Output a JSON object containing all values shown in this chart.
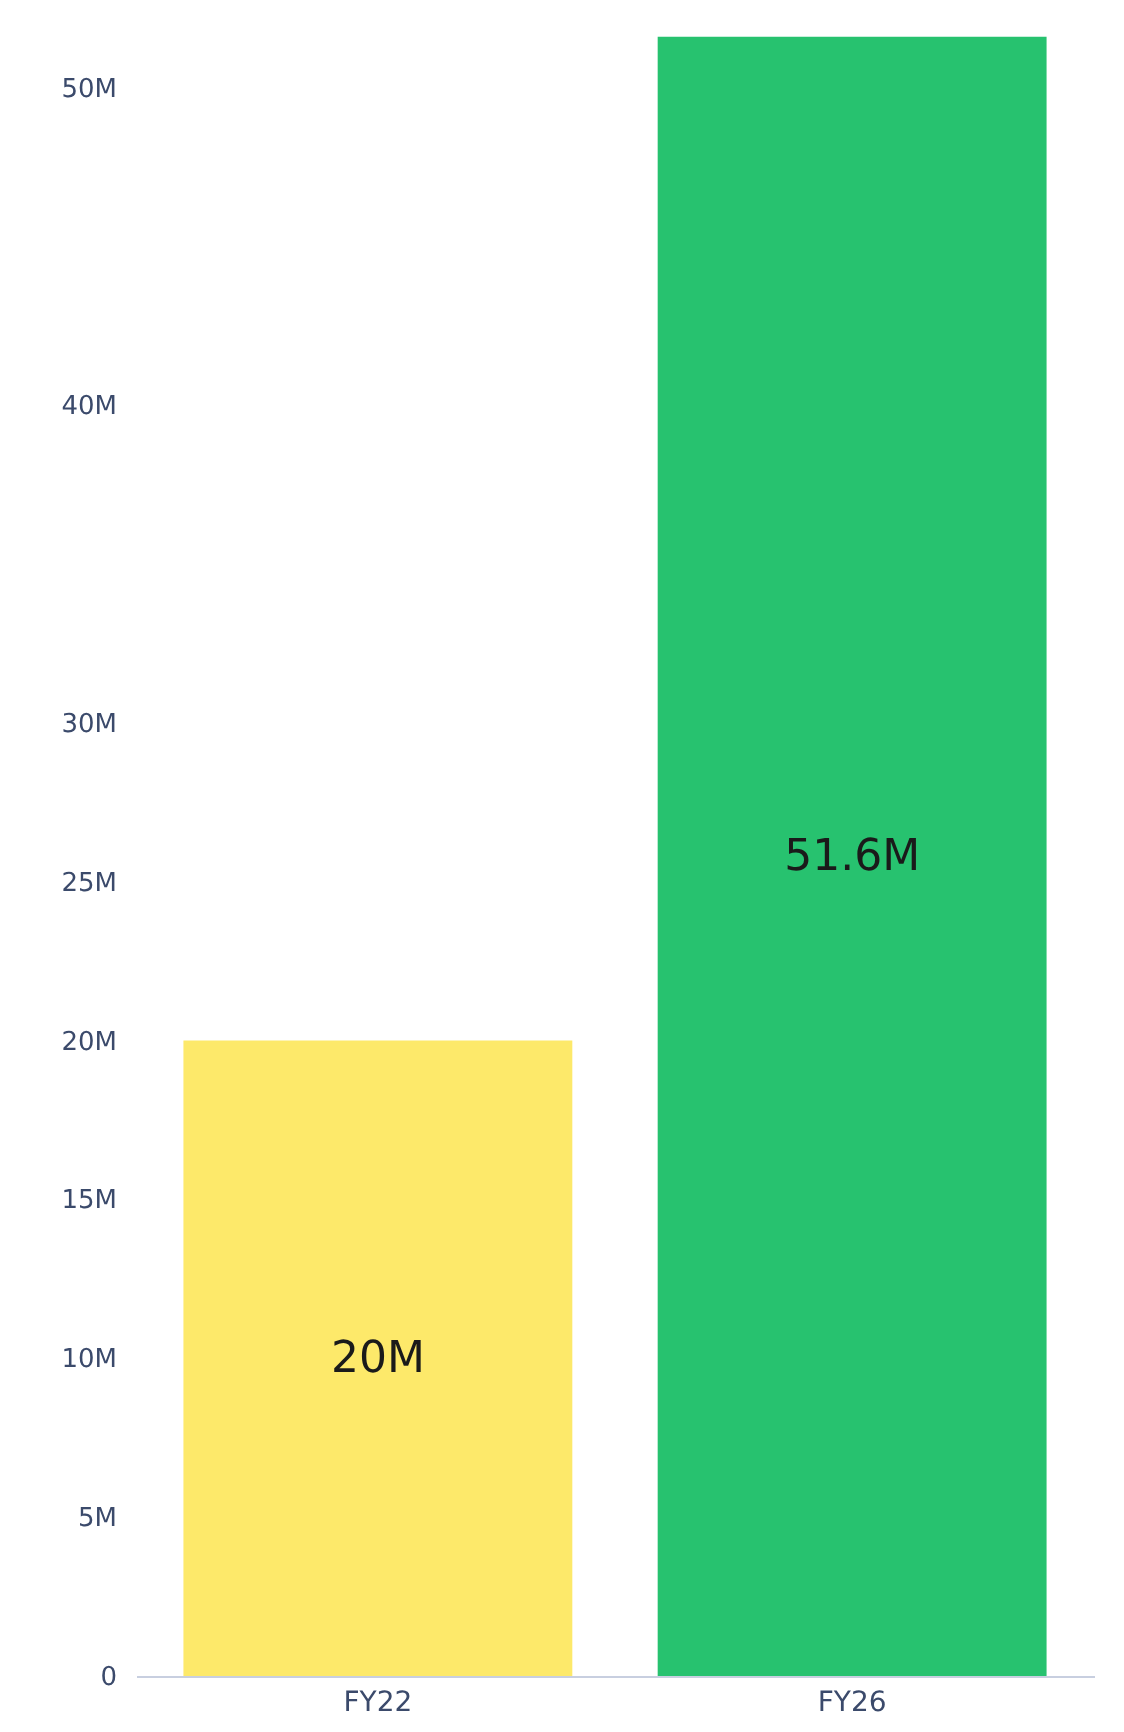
{
  "chart_data": {
    "type": "bar",
    "categories": [
      "FY22",
      "FY26"
    ],
    "values": [
      20,
      51.6
    ],
    "colors": [
      "#fde96a",
      "#27c26f"
    ],
    "value_labels": [
      "20M",
      "51.6M"
    ],
    "ylim": [
      0,
      52
    ],
    "yticks": [
      {
        "value": 0,
        "label": "0"
      },
      {
        "value": 5,
        "label": "5M"
      },
      {
        "value": 10,
        "label": "10M"
      },
      {
        "value": 15,
        "label": "15M"
      },
      {
        "value": 20,
        "label": "20M"
      },
      {
        "value": 25,
        "label": "25M"
      },
      {
        "value": 30,
        "label": "30M"
      },
      {
        "value": 40,
        "label": "40M"
      },
      {
        "value": 50,
        "label": "50M"
      }
    ],
    "grid": false
  }
}
